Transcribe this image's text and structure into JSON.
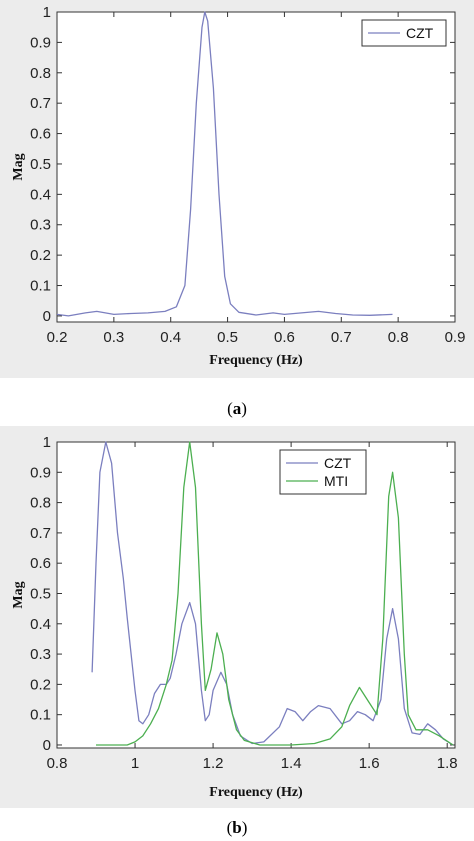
{
  "chart_data": [
    {
      "type": "line",
      "panel": "a",
      "caption_open": "(",
      "caption_letter": "a",
      "caption_close": ")",
      "xlabel": "Frequency (Hz)",
      "ylabel": "Mag",
      "xlim": [
        0.2,
        0.9
      ],
      "ylim": [
        -0.02,
        1.0
      ],
      "xticks": [
        "0.2",
        "0.3",
        "0.4",
        "0.5",
        "0.6",
        "0.7",
        "0.8",
        "0.9"
      ],
      "yticks": [
        "0",
        "0.1",
        "0.2",
        "0.3",
        "0.4",
        "0.5",
        "0.6",
        "0.7",
        "0.8",
        "0.9",
        "1"
      ],
      "legend_position": "top-right",
      "grid": false,
      "series": [
        {
          "name": "CZT",
          "color": "#7b7fbf",
          "points": [
            [
              0.2,
              0.005
            ],
            [
              0.22,
              0.0
            ],
            [
              0.25,
              0.01
            ],
            [
              0.27,
              0.015
            ],
            [
              0.3,
              0.005
            ],
            [
              0.33,
              0.008
            ],
            [
              0.36,
              0.01
            ],
            [
              0.39,
              0.015
            ],
            [
              0.41,
              0.03
            ],
            [
              0.425,
              0.1
            ],
            [
              0.435,
              0.35
            ],
            [
              0.445,
              0.7
            ],
            [
              0.455,
              0.95
            ],
            [
              0.46,
              1.0
            ],
            [
              0.465,
              0.97
            ],
            [
              0.475,
              0.75
            ],
            [
              0.485,
              0.4
            ],
            [
              0.495,
              0.13
            ],
            [
              0.505,
              0.04
            ],
            [
              0.52,
              0.012
            ],
            [
              0.55,
              0.003
            ],
            [
              0.58,
              0.01
            ],
            [
              0.6,
              0.005
            ],
            [
              0.63,
              0.01
            ],
            [
              0.66,
              0.015
            ],
            [
              0.69,
              0.008
            ],
            [
              0.72,
              0.003
            ],
            [
              0.75,
              0.002
            ],
            [
              0.79,
              0.005
            ]
          ]
        }
      ]
    },
    {
      "type": "line",
      "panel": "b",
      "caption_open": "(",
      "caption_letter": "b",
      "caption_close": ")",
      "xlabel": "Frequency (Hz)",
      "ylabel": "Mag",
      "xlim": [
        0.8,
        1.82
      ],
      "ylim": [
        -0.01,
        1.0
      ],
      "xticks": [
        "0.8",
        "1",
        "1.2",
        "1.4",
        "1.6",
        "1.8"
      ],
      "yticks": [
        "0",
        "0.1",
        "0.2",
        "0.3",
        "0.4",
        "0.5",
        "0.6",
        "0.7",
        "0.8",
        "0.9",
        "1"
      ],
      "legend_position": "top-right",
      "grid": false,
      "series": [
        {
          "name": "CZT",
          "color": "#7b7fbf",
          "points": [
            [
              0.89,
              0.24
            ],
            [
              0.9,
              0.6
            ],
            [
              0.91,
              0.9
            ],
            [
              0.925,
              1.0
            ],
            [
              0.94,
              0.93
            ],
            [
              0.955,
              0.7
            ],
            [
              0.97,
              0.55
            ],
            [
              0.98,
              0.42
            ],
            [
              0.99,
              0.3
            ],
            [
              1.0,
              0.18
            ],
            [
              1.01,
              0.08
            ],
            [
              1.02,
              0.07
            ],
            [
              1.035,
              0.1
            ],
            [
              1.05,
              0.17
            ],
            [
              1.065,
              0.2
            ],
            [
              1.08,
              0.2
            ],
            [
              1.09,
              0.22
            ],
            [
              1.105,
              0.3
            ],
            [
              1.12,
              0.4
            ],
            [
              1.14,
              0.47
            ],
            [
              1.155,
              0.4
            ],
            [
              1.17,
              0.18
            ],
            [
              1.18,
              0.08
            ],
            [
              1.19,
              0.1
            ],
            [
              1.2,
              0.18
            ],
            [
              1.22,
              0.24
            ],
            [
              1.235,
              0.2
            ],
            [
              1.25,
              0.1
            ],
            [
              1.27,
              0.03
            ],
            [
              1.3,
              0.005
            ],
            [
              1.33,
              0.01
            ],
            [
              1.37,
              0.06
            ],
            [
              1.39,
              0.12
            ],
            [
              1.41,
              0.11
            ],
            [
              1.43,
              0.08
            ],
            [
              1.45,
              0.11
            ],
            [
              1.47,
              0.13
            ],
            [
              1.5,
              0.12
            ],
            [
              1.53,
              0.07
            ],
            [
              1.55,
              0.08
            ],
            [
              1.57,
              0.11
            ],
            [
              1.59,
              0.1
            ],
            [
              1.61,
              0.08
            ],
            [
              1.63,
              0.15
            ],
            [
              1.645,
              0.35
            ],
            [
              1.66,
              0.45
            ],
            [
              1.675,
              0.35
            ],
            [
              1.69,
              0.12
            ],
            [
              1.71,
              0.04
            ],
            [
              1.73,
              0.035
            ],
            [
              1.75,
              0.07
            ],
            [
              1.77,
              0.05
            ],
            [
              1.79,
              0.02
            ],
            [
              1.815,
              0.0
            ]
          ]
        },
        {
          "name": "MTI",
          "color": "#4caf50",
          "points": [
            [
              0.9,
              0.0
            ],
            [
              0.94,
              0.0
            ],
            [
              0.98,
              0.0
            ],
            [
              1.0,
              0.01
            ],
            [
              1.02,
              0.03
            ],
            [
              1.04,
              0.07
            ],
            [
              1.06,
              0.12
            ],
            [
              1.08,
              0.2
            ],
            [
              1.095,
              0.28
            ],
            [
              1.11,
              0.5
            ],
            [
              1.125,
              0.85
            ],
            [
              1.14,
              1.0
            ],
            [
              1.155,
              0.85
            ],
            [
              1.17,
              0.4
            ],
            [
              1.18,
              0.18
            ],
            [
              1.195,
              0.25
            ],
            [
              1.21,
              0.37
            ],
            [
              1.225,
              0.3
            ],
            [
              1.24,
              0.15
            ],
            [
              1.26,
              0.05
            ],
            [
              1.28,
              0.015
            ],
            [
              1.32,
              0.0
            ],
            [
              1.4,
              0.0
            ],
            [
              1.46,
              0.005
            ],
            [
              1.5,
              0.02
            ],
            [
              1.53,
              0.06
            ],
            [
              1.55,
              0.13
            ],
            [
              1.575,
              0.19
            ],
            [
              1.6,
              0.14
            ],
            [
              1.62,
              0.1
            ],
            [
              1.635,
              0.35
            ],
            [
              1.65,
              0.82
            ],
            [
              1.66,
              0.9
            ],
            [
              1.675,
              0.75
            ],
            [
              1.69,
              0.3
            ],
            [
              1.7,
              0.1
            ],
            [
              1.72,
              0.05
            ],
            [
              1.75,
              0.05
            ],
            [
              1.78,
              0.03
            ],
            [
              1.815,
              0.0
            ]
          ]
        }
      ]
    }
  ]
}
